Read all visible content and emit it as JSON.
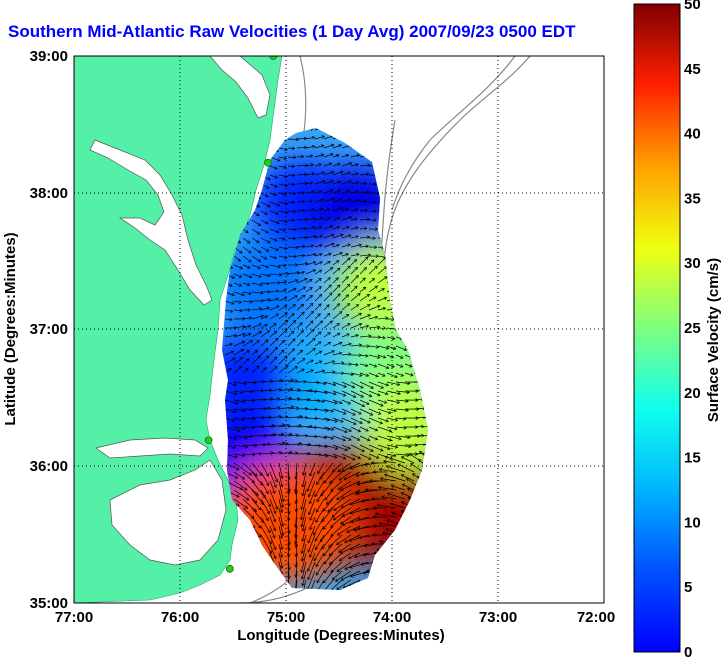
{
  "title": "Southern Mid-Atlantic Raw Velocities (1 Day Avg) 2007/09/23 0500 EDT",
  "chart_data": {
    "type": "heatmap",
    "title": "Southern Mid-Atlantic Raw Velocities (1 Day Avg) 2007/09/23 0500 EDT",
    "xlabel": "Longitude (Degrees:Minutes)",
    "ylabel": "Latitude (Degrees:Minutes)",
    "xlim": [
      -77,
      -72
    ],
    "ylim": [
      35,
      39
    ],
    "x_ticks": [
      {
        "value": -77,
        "label": "77:00"
      },
      {
        "value": -76,
        "label": "76:00"
      },
      {
        "value": -75,
        "label": "75:00"
      },
      {
        "value": -74,
        "label": "74:00"
      },
      {
        "value": -73,
        "label": "73:00"
      },
      {
        "value": -72,
        "label": "72:00"
      }
    ],
    "y_ticks": [
      {
        "value": 35,
        "label": "35:00"
      },
      {
        "value": 36,
        "label": "36:00"
      },
      {
        "value": 37,
        "label": "37:00"
      },
      {
        "value": 38,
        "label": "38:00"
      },
      {
        "value": 39,
        "label": "39:00"
      }
    ],
    "grid": true,
    "colorbar": {
      "label": "Surface Velocity (cm/s)",
      "range": [
        0,
        50
      ],
      "ticks": [
        0,
        5,
        10,
        15,
        20,
        25,
        30,
        35,
        40,
        45,
        50
      ],
      "colormap": "jet"
    },
    "colors": {
      "land": "#55f0a8",
      "contour": "#888888",
      "arrow": "#000000",
      "station": "#22cc22"
    },
    "stations": [
      {
        "lon": -75.12,
        "lat": 39.0
      },
      {
        "lon": -75.17,
        "lat": 38.22
      },
      {
        "lon": -75.73,
        "lat": 36.19
      },
      {
        "lon": -75.53,
        "lat": 35.25
      }
    ],
    "velocity_regions": [
      {
        "lon": -74.85,
        "lat": 37.9,
        "speed": 8
      },
      {
        "lon": -74.3,
        "lat": 37.85,
        "speed": 5
      },
      {
        "lon": -75.2,
        "lat": 37.3,
        "speed": 12
      },
      {
        "lon": -74.1,
        "lat": 37.3,
        "speed": 28
      },
      {
        "lon": -75.4,
        "lat": 36.6,
        "speed": 8
      },
      {
        "lon": -74.5,
        "lat": 36.6,
        "speed": 15
      },
      {
        "lon": -74.0,
        "lat": 36.7,
        "speed": 25
      },
      {
        "lon": -75.4,
        "lat": 36.05,
        "speed": 6
      },
      {
        "lon": -74.55,
        "lat": 35.7,
        "speed": 50
      },
      {
        "lon": -74.15,
        "lat": 35.75,
        "speed": 48
      },
      {
        "lon": -75.0,
        "lat": 35.6,
        "speed": 40
      },
      {
        "lon": -73.85,
        "lat": 36.3,
        "speed": 28
      }
    ]
  }
}
